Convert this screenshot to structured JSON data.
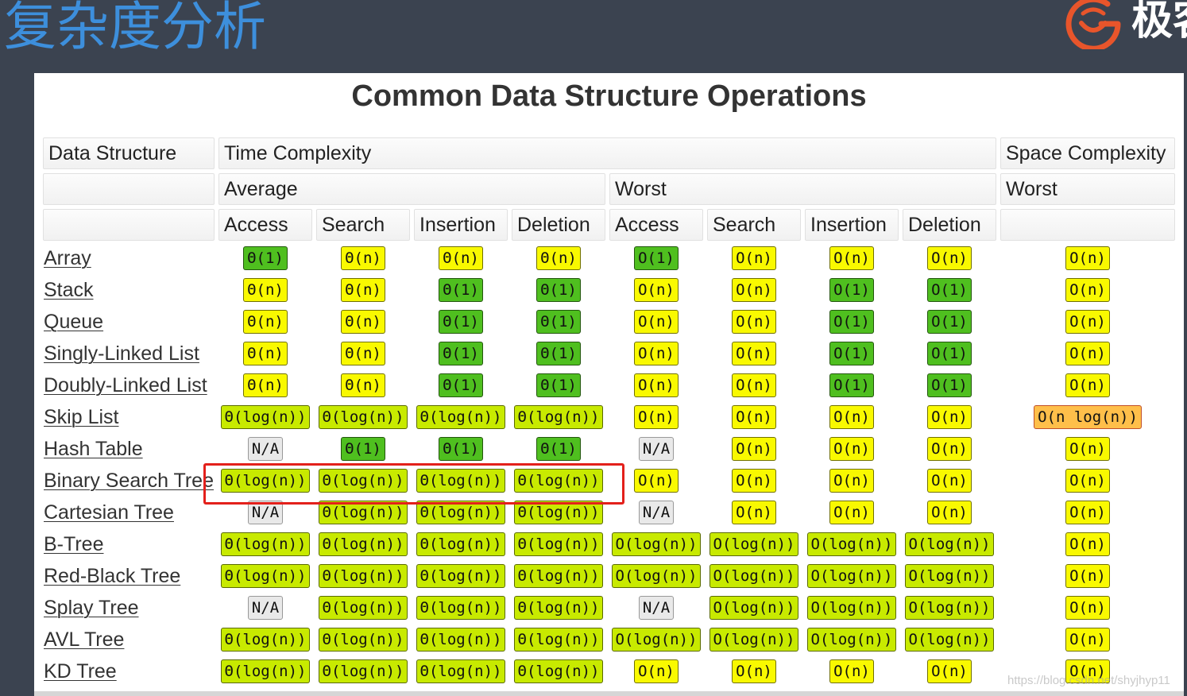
{
  "slide": {
    "title": "复杂度分析",
    "logo_text": "极客",
    "watermark": "https://blog.csdn.net/shyjhyp11"
  },
  "icons": {
    "brand_logo": "brand-logo-icon"
  },
  "table": {
    "title": "Common Data Structure Operations",
    "headers": {
      "data_structure": "Data Structure",
      "time_complexity": "Time Complexity",
      "space_complexity": "Space Complexity",
      "average": "Average",
      "worst": "Worst",
      "space_worst": "Worst",
      "average_ops": [
        "Access",
        "Search",
        "Insertion",
        "Deletion"
      ],
      "worst_ops": [
        "Access",
        "Search",
        "Insertion",
        "Deletion"
      ]
    },
    "rows": [
      {
        "name": "Array",
        "cells": [
          "Θ(1)",
          "Θ(n)",
          "Θ(n)",
          "Θ(n)",
          "O(1)",
          "O(n)",
          "O(n)",
          "O(n)",
          "O(n)"
        ],
        "colors": [
          "green",
          "yellow",
          "yellow",
          "yellow",
          "green",
          "yellow",
          "yellow",
          "yellow",
          "yellow"
        ]
      },
      {
        "name": "Stack",
        "cells": [
          "Θ(n)",
          "Θ(n)",
          "Θ(1)",
          "Θ(1)",
          "O(n)",
          "O(n)",
          "O(1)",
          "O(1)",
          "O(n)"
        ],
        "colors": [
          "yellow",
          "yellow",
          "green",
          "green",
          "yellow",
          "yellow",
          "green",
          "green",
          "yellow"
        ]
      },
      {
        "name": "Queue",
        "cells": [
          "Θ(n)",
          "Θ(n)",
          "Θ(1)",
          "Θ(1)",
          "O(n)",
          "O(n)",
          "O(1)",
          "O(1)",
          "O(n)"
        ],
        "colors": [
          "yellow",
          "yellow",
          "green",
          "green",
          "yellow",
          "yellow",
          "green",
          "green",
          "yellow"
        ]
      },
      {
        "name": "Singly-Linked List",
        "cells": [
          "Θ(n)",
          "Θ(n)",
          "Θ(1)",
          "Θ(1)",
          "O(n)",
          "O(n)",
          "O(1)",
          "O(1)",
          "O(n)"
        ],
        "colors": [
          "yellow",
          "yellow",
          "green",
          "green",
          "yellow",
          "yellow",
          "green",
          "green",
          "yellow"
        ]
      },
      {
        "name": "Doubly-Linked List",
        "cells": [
          "Θ(n)",
          "Θ(n)",
          "Θ(1)",
          "Θ(1)",
          "O(n)",
          "O(n)",
          "O(1)",
          "O(1)",
          "O(n)"
        ],
        "colors": [
          "yellow",
          "yellow",
          "green",
          "green",
          "yellow",
          "yellow",
          "green",
          "green",
          "yellow"
        ]
      },
      {
        "name": "Skip List",
        "cells": [
          "Θ(log(n))",
          "Θ(log(n))",
          "Θ(log(n))",
          "Θ(log(n))",
          "O(n)",
          "O(n)",
          "O(n)",
          "O(n)",
          "O(n log(n))"
        ],
        "colors": [
          "yellow-green",
          "yellow-green",
          "yellow-green",
          "yellow-green",
          "yellow",
          "yellow",
          "yellow",
          "yellow",
          "orange"
        ]
      },
      {
        "name": "Hash Table",
        "cells": [
          "N/A",
          "Θ(1)",
          "Θ(1)",
          "Θ(1)",
          "N/A",
          "O(n)",
          "O(n)",
          "O(n)",
          "O(n)"
        ],
        "colors": [
          "gray",
          "green",
          "green",
          "green",
          "gray",
          "yellow",
          "yellow",
          "yellow",
          "yellow"
        ]
      },
      {
        "name": "Binary Search Tree",
        "cells": [
          "Θ(log(n))",
          "Θ(log(n))",
          "Θ(log(n))",
          "Θ(log(n))",
          "O(n)",
          "O(n)",
          "O(n)",
          "O(n)",
          "O(n)"
        ],
        "colors": [
          "yellow-green",
          "yellow-green",
          "yellow-green",
          "yellow-green",
          "yellow",
          "yellow",
          "yellow",
          "yellow",
          "yellow"
        ]
      },
      {
        "name": "Cartesian Tree",
        "cells": [
          "N/A",
          "Θ(log(n))",
          "Θ(log(n))",
          "Θ(log(n))",
          "N/A",
          "O(n)",
          "O(n)",
          "O(n)",
          "O(n)"
        ],
        "colors": [
          "gray",
          "yellow-green",
          "yellow-green",
          "yellow-green",
          "gray",
          "yellow",
          "yellow",
          "yellow",
          "yellow"
        ]
      },
      {
        "name": "B-Tree",
        "cells": [
          "Θ(log(n))",
          "Θ(log(n))",
          "Θ(log(n))",
          "Θ(log(n))",
          "O(log(n))",
          "O(log(n))",
          "O(log(n))",
          "O(log(n))",
          "O(n)"
        ],
        "colors": [
          "yellow-green",
          "yellow-green",
          "yellow-green",
          "yellow-green",
          "yellow-green",
          "yellow-green",
          "yellow-green",
          "yellow-green",
          "yellow"
        ]
      },
      {
        "name": "Red-Black Tree",
        "cells": [
          "Θ(log(n))",
          "Θ(log(n))",
          "Θ(log(n))",
          "Θ(log(n))",
          "O(log(n))",
          "O(log(n))",
          "O(log(n))",
          "O(log(n))",
          "O(n)"
        ],
        "colors": [
          "yellow-green",
          "yellow-green",
          "yellow-green",
          "yellow-green",
          "yellow-green",
          "yellow-green",
          "yellow-green",
          "yellow-green",
          "yellow"
        ]
      },
      {
        "name": "Splay Tree",
        "cells": [
          "N/A",
          "Θ(log(n))",
          "Θ(log(n))",
          "Θ(log(n))",
          "N/A",
          "O(log(n))",
          "O(log(n))",
          "O(log(n))",
          "O(n)"
        ],
        "colors": [
          "gray",
          "yellow-green",
          "yellow-green",
          "yellow-green",
          "gray",
          "yellow-green",
          "yellow-green",
          "yellow-green",
          "yellow"
        ]
      },
      {
        "name": "AVL Tree",
        "cells": [
          "Θ(log(n))",
          "Θ(log(n))",
          "Θ(log(n))",
          "Θ(log(n))",
          "O(log(n))",
          "O(log(n))",
          "O(log(n))",
          "O(log(n))",
          "O(n)"
        ],
        "colors": [
          "yellow-green",
          "yellow-green",
          "yellow-green",
          "yellow-green",
          "yellow-green",
          "yellow-green",
          "yellow-green",
          "yellow-green",
          "yellow"
        ]
      },
      {
        "name": "KD Tree",
        "cells": [
          "Θ(log(n))",
          "Θ(log(n))",
          "Θ(log(n))",
          "Θ(log(n))",
          "O(n)",
          "O(n)",
          "O(n)",
          "O(n)",
          "O(n)"
        ],
        "colors": [
          "yellow-green",
          "yellow-green",
          "yellow-green",
          "yellow-green",
          "yellow",
          "yellow",
          "yellow",
          "yellow",
          "yellow"
        ]
      }
    ]
  },
  "palette": {
    "green": "#4fbf1f",
    "yellow-green": "#c8ea00",
    "yellow": "#f9f900",
    "orange": "#ffbf4a",
    "gray": "#e9e9e9"
  },
  "colors": {
    "background": "#3b4350",
    "slide_title": "#3d8fdc",
    "logo": "#e8552b",
    "highlight_box": "#e3201b"
  }
}
